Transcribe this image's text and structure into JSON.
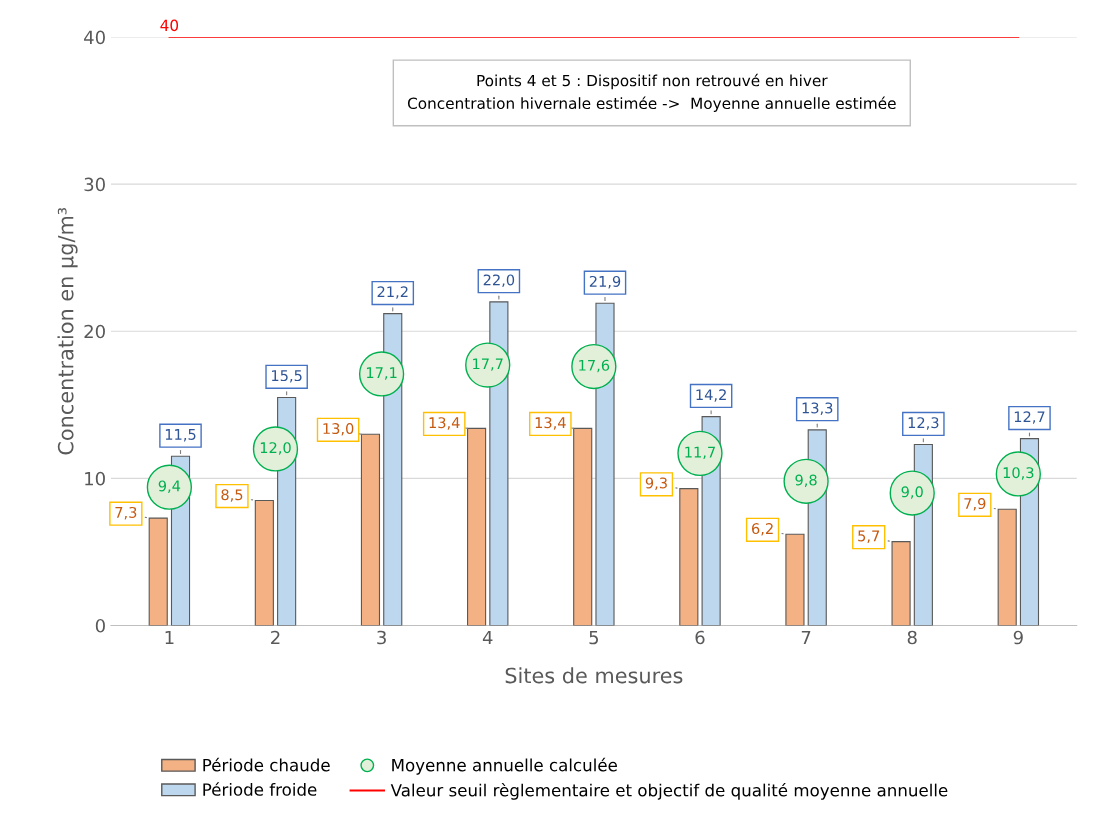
{
  "chart_data": {
    "type": "bar",
    "xlabel": "Sites de mesures",
    "ylabel": "Concentration en µg/m³",
    "categories": [
      "1",
      "2",
      "3",
      "4",
      "5",
      "6",
      "7",
      "8",
      "9"
    ],
    "series": [
      {
        "name": "Période chaude",
        "color": "#f4b183",
        "values": [
          7.3,
          8.5,
          13.0,
          13.4,
          13.4,
          9.3,
          6.2,
          5.7,
          7.9
        ],
        "value_labels": [
          "7,3",
          "8,5",
          "13,0",
          "13,4",
          "13,4",
          "9,3",
          "6,2",
          "5,7",
          "7,9"
        ]
      },
      {
        "name": "Période froide",
        "color": "#bdd7ee",
        "values": [
          11.5,
          15.5,
          21.2,
          22.0,
          21.9,
          14.2,
          13.3,
          12.3,
          12.7
        ],
        "value_labels": [
          "11,5",
          "15,5",
          "21,2",
          "22,0",
          "21,9",
          "14,2",
          "13,3",
          "12,3",
          "12,7"
        ]
      },
      {
        "name": "Moyenne annuelle calculée",
        "type": "scatter",
        "color": "#00b050",
        "marker": "circle",
        "x": [
          "1",
          "2",
          "3",
          "4",
          "5",
          "6",
          "7",
          "8",
          "9"
        ],
        "values": [
          9.4,
          12.0,
          17.1,
          17.7,
          17.6,
          11.7,
          9.8,
          9.0,
          10.3
        ],
        "value_labels": [
          "9,4",
          "12,0",
          "17,1",
          "17,7",
          "17,6",
          "11,7",
          "9,8",
          "9,0",
          "10,3"
        ]
      },
      {
        "name": "Valeur seuil règlementaire et objectif de qualité moyenne annuelle",
        "type": "line",
        "color": "#ff0000",
        "values": [
          40,
          40,
          40,
          40,
          40,
          40,
          40,
          40,
          40
        ],
        "value_labels": [
          "40",
          null,
          null,
          null,
          null,
          null,
          null,
          null,
          null
        ]
      }
    ],
    "ylim": [
      0,
      40
    ],
    "yticks": [
      0,
      10,
      20,
      30,
      40
    ],
    "grid": "y",
    "legend": "bottom",
    "annotations": [
      "Points 4 et 5 : Dispositif non retrouvé en hiver\nConcentration hivernale estimée ->  Moyenne annuelle estimée"
    ]
  }
}
